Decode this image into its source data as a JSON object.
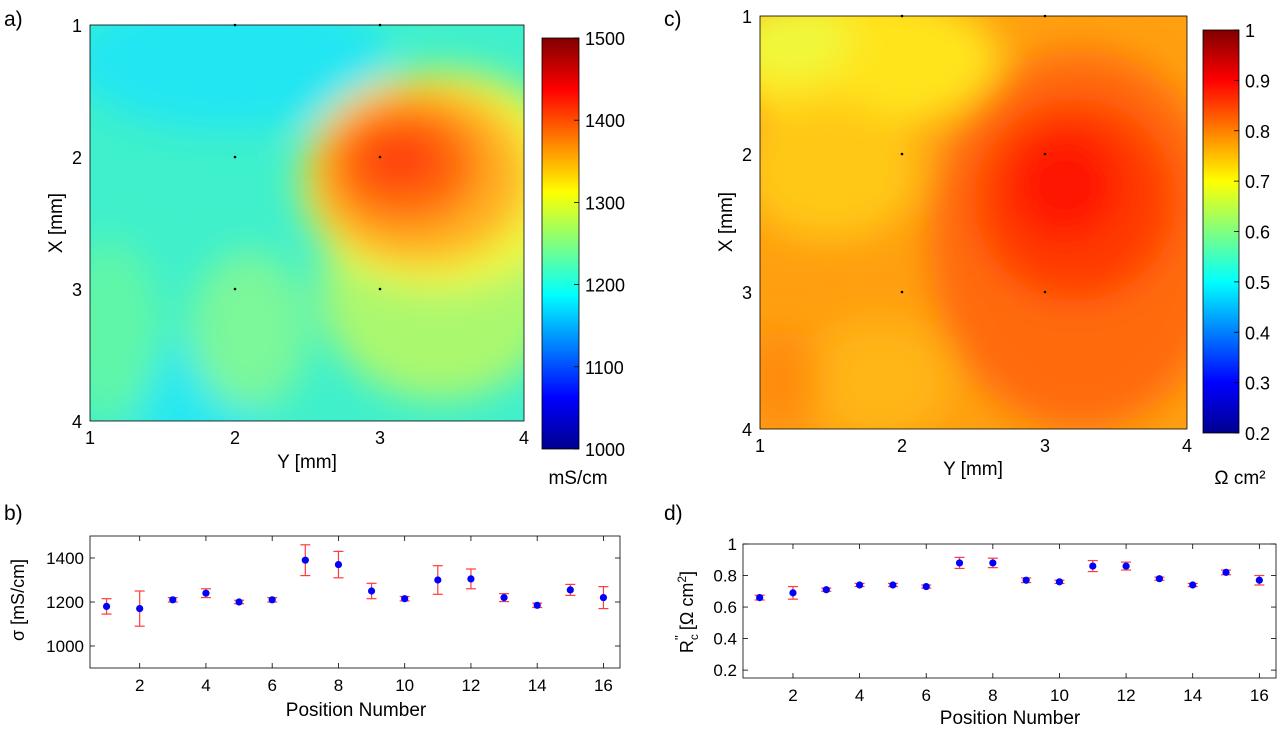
{
  "figure": {
    "panels": {
      "a": {
        "label": "a)"
      },
      "b": {
        "label": "b)"
      },
      "c": {
        "label": "c)"
      },
      "d": {
        "label": "d)"
      }
    }
  },
  "chart_data": [
    {
      "id": "a",
      "type": "heatmap",
      "title": "",
      "xlabel": "Y [mm]",
      "ylabel": "X [mm]",
      "xlim": [
        1,
        4
      ],
      "ylim": [
        1,
        4
      ],
      "y_direction": "top-to-bottom",
      "xticks": [
        "1",
        "2",
        "3",
        "4"
      ],
      "yticks": [
        "1",
        "2",
        "3",
        "4"
      ],
      "colorbar": {
        "label": "mS/cm",
        "min": 1000,
        "max": 1500,
        "ticks": [
          "1000",
          "1100",
          "1200",
          "1300",
          "1400",
          "1500"
        ],
        "colormap": "jet"
      },
      "grid_values": [
        [
          1180,
          1170,
          1205,
          1215
        ],
        [
          1220,
          1250,
          1390,
          1370
        ],
        [
          1210,
          1220,
          1300,
          1300
        ],
        [
          1210,
          1185,
          1255,
          1220
        ]
      ]
    },
    {
      "id": "b",
      "type": "scatter",
      "title": "",
      "xlabel": "Position Number",
      "ylabel": "σ [mS/cm]",
      "xlim": [
        0.5,
        16.5
      ],
      "ylim": [
        900,
        1500
      ],
      "xticks": [
        "2",
        "4",
        "6",
        "8",
        "10",
        "12",
        "14",
        "16"
      ],
      "yticks": [
        "1000",
        "1200",
        "1400"
      ],
      "x": [
        1,
        2,
        3,
        4,
        5,
        6,
        7,
        8,
        9,
        10,
        11,
        12,
        13,
        14,
        15,
        16
      ],
      "values": [
        1180,
        1170,
        1210,
        1240,
        1200,
        1210,
        1390,
        1370,
        1250,
        1215,
        1300,
        1305,
        1220,
        1185,
        1255,
        1220
      ],
      "errors": [
        35,
        80,
        10,
        20,
        8,
        10,
        70,
        60,
        35,
        10,
        65,
        45,
        18,
        10,
        25,
        50
      ]
    },
    {
      "id": "c",
      "type": "heatmap",
      "title": "",
      "xlabel": "Y [mm]",
      "ylabel": "X [mm]",
      "xlim": [
        1,
        4
      ],
      "ylim": [
        1,
        4
      ],
      "y_direction": "top-to-bottom",
      "xticks": [
        "1",
        "2",
        "3",
        "4"
      ],
      "yticks": [
        "1",
        "2",
        "3",
        "4"
      ],
      "colorbar": {
        "label": "Ω cm²",
        "min": 0.2,
        "max": 1.0,
        "ticks": [
          "0.2",
          "0.3",
          "0.4",
          "0.5",
          "0.6",
          "0.7",
          "0.8",
          "0.9",
          "1"
        ],
        "colormap": "jet"
      },
      "grid_values": [
        [
          0.66,
          0.69,
          0.72,
          0.74
        ],
        [
          0.74,
          0.73,
          0.88,
          0.88
        ],
        [
          0.77,
          0.76,
          0.86,
          0.86
        ],
        [
          0.78,
          0.74,
          0.82,
          0.77
        ]
      ]
    },
    {
      "id": "d",
      "type": "scatter",
      "title": "",
      "xlabel": "Position Number",
      "ylabel": "R_c'' [Ω cm²]",
      "ylabel_parts": {
        "symbol": "R",
        "subscript": "c",
        "superscript": "''",
        "unit_open": " [Ω cm",
        "unit_exp": "2",
        "unit_close": "]"
      },
      "xlim": [
        0.5,
        16.5
      ],
      "ylim": [
        0.15,
        1.0
      ],
      "xticks": [
        "2",
        "4",
        "6",
        "8",
        "10",
        "12",
        "14",
        "16"
      ],
      "yticks": [
        "0.2",
        "0.4",
        "0.6",
        "0.8",
        "1"
      ],
      "x": [
        1,
        2,
        3,
        4,
        5,
        6,
        7,
        8,
        9,
        10,
        11,
        12,
        13,
        14,
        15,
        16
      ],
      "values": [
        0.66,
        0.69,
        0.71,
        0.74,
        0.74,
        0.73,
        0.88,
        0.88,
        0.77,
        0.76,
        0.86,
        0.86,
        0.78,
        0.74,
        0.82,
        0.77
      ],
      "errors": [
        0.015,
        0.04,
        0.01,
        0.01,
        0.01,
        0.01,
        0.035,
        0.03,
        0.015,
        0.01,
        0.035,
        0.025,
        0.01,
        0.01,
        0.015,
        0.03
      ]
    }
  ],
  "colors": {
    "error_bar": "#ff3b3b",
    "marker": "#0000ff",
    "axis": "#000000"
  }
}
